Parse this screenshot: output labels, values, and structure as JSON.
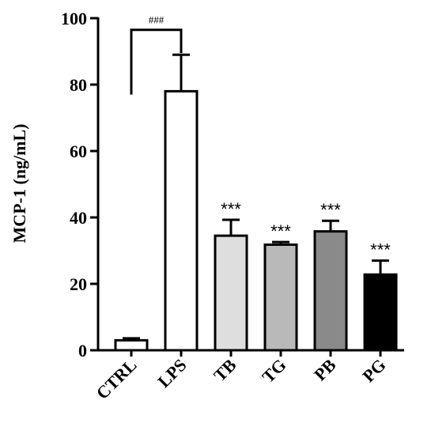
{
  "chart_data": {
    "type": "bar",
    "ylabel": "MCP-1 (ng/mL)",
    "xlabel": "",
    "ylim": [
      0,
      100
    ],
    "yticks": [
      0,
      20,
      40,
      60,
      80,
      100
    ],
    "categories": [
      "CTRL",
      "LPS",
      "TB",
      "TG",
      "PB",
      "PG"
    ],
    "values": [
      3,
      78,
      34.5,
      31.8,
      35.8,
      22.8
    ],
    "errors": [
      0.6,
      11,
      4.8,
      0.8,
      3.2,
      4.2
    ],
    "fills": [
      "#ffffff",
      "#ffffff",
      "#dedede",
      "#b9b9b9",
      "#8a8a8a",
      "#000000"
    ],
    "significance": [
      "",
      "",
      "***",
      "***",
      "***",
      "***"
    ],
    "bracket": {
      "from": "CTRL",
      "to": "LPS",
      "label": "###"
    },
    "grid": false,
    "legend": "none"
  }
}
